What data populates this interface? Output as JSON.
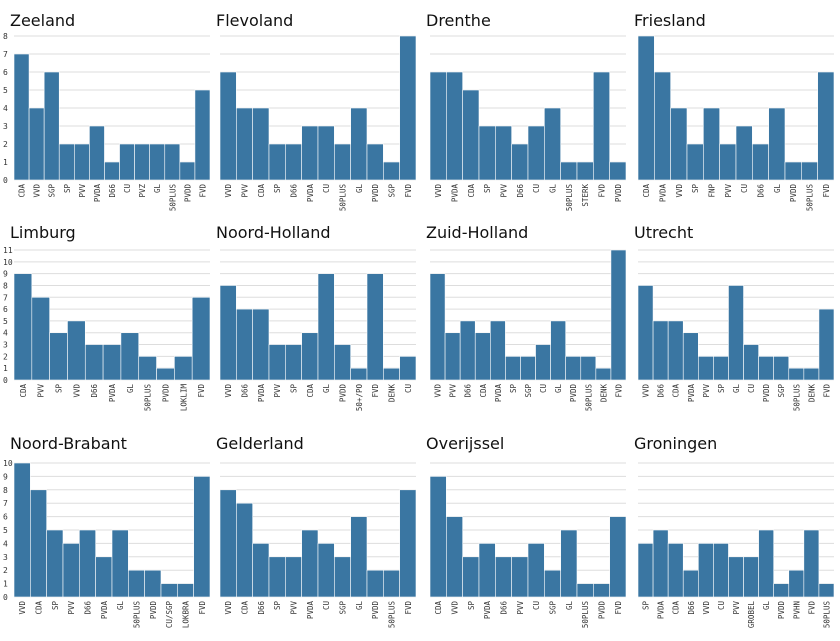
{
  "colors": {
    "bar": "#3a76a2",
    "grid": "#dddddd",
    "text": "#111111"
  },
  "chart_data": [
    {
      "type": "bar",
      "title": "Zeeland",
      "ylim": [
        0,
        8
      ],
      "yticks": [
        0,
        1,
        2,
        3,
        4,
        5,
        6,
        7,
        8
      ],
      "categories": [
        "CDA",
        "VVD",
        "SGP",
        "SP",
        "PVV",
        "PVDA",
        "D66",
        "CU",
        "PVZ",
        "GL",
        "50PLUS",
        "PVDD",
        "FVD"
      ],
      "values": [
        7,
        4,
        6,
        2,
        2,
        3,
        1,
        2,
        2,
        2,
        2,
        1,
        5
      ]
    },
    {
      "type": "bar",
      "title": "Flevoland",
      "ylim": [
        0,
        8
      ],
      "yticks": [
        0,
        1,
        2,
        3,
        4,
        5,
        6,
        7,
        8
      ],
      "categories": [
        "VVD",
        "PVV",
        "CDA",
        "SP",
        "D66",
        "PVDA",
        "CU",
        "50PLUS",
        "GL",
        "PVDD",
        "SGP",
        "FVD"
      ],
      "values": [
        6,
        4,
        4,
        2,
        2,
        3,
        3,
        2,
        4,
        2,
        1,
        8
      ]
    },
    {
      "type": "bar",
      "title": "Drenthe",
      "ylim": [
        0,
        8
      ],
      "yticks": [
        0,
        1,
        2,
        3,
        4,
        5,
        6,
        7,
        8
      ],
      "categories": [
        "VVD",
        "PVDA",
        "CDA",
        "SP",
        "PVV",
        "D66",
        "CU",
        "GL",
        "50PLUS",
        "STERK",
        "FVD",
        "PVDD"
      ],
      "values": [
        6,
        6,
        5,
        3,
        3,
        2,
        3,
        4,
        1,
        1,
        6,
        1
      ]
    },
    {
      "type": "bar",
      "title": "Friesland",
      "ylim": [
        0,
        8
      ],
      "yticks": [
        0,
        1,
        2,
        3,
        4,
        5,
        6,
        7,
        8
      ],
      "categories": [
        "CDA",
        "PVDA",
        "VVD",
        "SP",
        "FNP",
        "PVV",
        "CU",
        "D66",
        "GL",
        "PVDD",
        "50PLUS",
        "FVD"
      ],
      "values": [
        8,
        6,
        4,
        2,
        4,
        2,
        3,
        2,
        4,
        1,
        1,
        6
      ]
    },
    {
      "type": "bar",
      "title": "Limburg",
      "ylim": [
        0,
        11
      ],
      "yticks": [
        0,
        1,
        2,
        3,
        4,
        5,
        6,
        7,
        8,
        9,
        10,
        11
      ],
      "categories": [
        "CDA",
        "PVV",
        "SP",
        "VVD",
        "D66",
        "PVDA",
        "GL",
        "50PLUS",
        "PVDD",
        "LOKLIM",
        "FVD"
      ],
      "values": [
        9,
        7,
        4,
        5,
        3,
        3,
        4,
        2,
        1,
        2,
        7
      ]
    },
    {
      "type": "bar",
      "title": "Noord-Holland",
      "ylim": [
        0,
        11
      ],
      "yticks": [
        0,
        1,
        2,
        3,
        4,
        5,
        6,
        7,
        8,
        9,
        10,
        11
      ],
      "categories": [
        "VVD",
        "D66",
        "PVDA",
        "PVV",
        "SP",
        "CDA",
        "GL",
        "PVDD",
        "50+/PO",
        "FVD",
        "DENK",
        "CU"
      ],
      "values": [
        8,
        6,
        6,
        3,
        3,
        4,
        9,
        3,
        1,
        9,
        1,
        2
      ]
    },
    {
      "type": "bar",
      "title": "Zuid-Holland",
      "ylim": [
        0,
        11
      ],
      "yticks": [
        0,
        1,
        2,
        3,
        4,
        5,
        6,
        7,
        8,
        9,
        10,
        11
      ],
      "categories": [
        "VVD",
        "PVV",
        "D66",
        "CDA",
        "PVDA",
        "SP",
        "SGP",
        "CU",
        "GL",
        "PVDD",
        "50PLUS",
        "DENK",
        "FVD"
      ],
      "values": [
        9,
        4,
        5,
        4,
        5,
        2,
        2,
        3,
        5,
        2,
        2,
        1,
        11
      ]
    },
    {
      "type": "bar",
      "title": "Utrecht",
      "ylim": [
        0,
        11
      ],
      "yticks": [
        0,
        1,
        2,
        3,
        4,
        5,
        6,
        7,
        8,
        9,
        10,
        11
      ],
      "categories": [
        "VVD",
        "D66",
        "CDA",
        "PVDA",
        "PVV",
        "SP",
        "GL",
        "CU",
        "PVDD",
        "SGP",
        "50PLUS",
        "DENK",
        "FVD"
      ],
      "values": [
        8,
        5,
        5,
        4,
        2,
        2,
        8,
        3,
        2,
        2,
        1,
        1,
        6
      ]
    },
    {
      "type": "bar",
      "title": "Noord-Brabant",
      "ylim": [
        0,
        10
      ],
      "yticks": [
        0,
        1,
        2,
        3,
        4,
        5,
        6,
        7,
        8,
        9,
        10
      ],
      "categories": [
        "VVD",
        "CDA",
        "SP",
        "PVV",
        "D66",
        "PVDA",
        "GL",
        "50PLUS",
        "PVDD",
        "CU/SGP",
        "LOKBRA",
        "FVD"
      ],
      "values": [
        10,
        8,
        5,
        4,
        5,
        3,
        5,
        2,
        2,
        1,
        1,
        9
      ]
    },
    {
      "type": "bar",
      "title": "Gelderland",
      "ylim": [
        0,
        10
      ],
      "yticks": [
        0,
        1,
        2,
        3,
        4,
        5,
        6,
        7,
        8,
        9,
        10
      ],
      "categories": [
        "VVD",
        "CDA",
        "D66",
        "SP",
        "PVV",
        "PVDA",
        "CU",
        "SGP",
        "GL",
        "PVDD",
        "50PLUS",
        "FVD"
      ],
      "values": [
        8,
        7,
        4,
        3,
        3,
        5,
        4,
        3,
        6,
        2,
        2,
        8
      ]
    },
    {
      "type": "bar",
      "title": "Overijssel",
      "ylim": [
        0,
        10
      ],
      "yticks": [
        0,
        1,
        2,
        3,
        4,
        5,
        6,
        7,
        8,
        9,
        10
      ],
      "categories": [
        "CDA",
        "VVD",
        "SP",
        "PVDA",
        "D66",
        "PVV",
        "CU",
        "SGP",
        "GL",
        "50PLUS",
        "PVDD",
        "FVD"
      ],
      "values": [
        9,
        6,
        3,
        4,
        3,
        3,
        4,
        2,
        5,
        1,
        1,
        6
      ]
    },
    {
      "type": "bar",
      "title": "Groningen",
      "ylim": [
        0,
        10
      ],
      "yticks": [
        0,
        1,
        2,
        3,
        4,
        5,
        6,
        7,
        8,
        9,
        10
      ],
      "categories": [
        "SP",
        "PVDA",
        "CDA",
        "D66",
        "VVD",
        "CU",
        "PVV",
        "GROBEL",
        "GL",
        "PVDD",
        "PVHN",
        "FVD",
        "50PLUS"
      ],
      "values": [
        4,
        5,
        4,
        2,
        4,
        4,
        3,
        3,
        5,
        1,
        2,
        5,
        1
      ]
    }
  ]
}
